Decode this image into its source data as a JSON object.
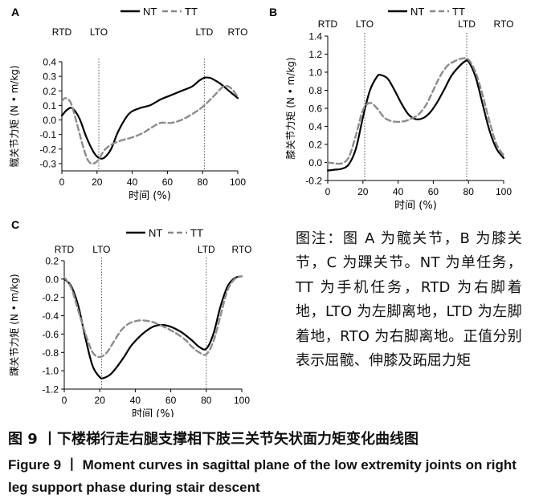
{
  "note": "图注：图 A 为髋关节，B 为膝关节，C 为踝关节。NT 为单任务，TT 为手机任务，RTD 为右脚着地，LTO 为左脚离地，LTD 为左脚着地，RTO 为右脚离地。正值分别表示屈髋、伸膝及跖屈力矩",
  "caption_cn": "图 9 丨下楼梯行走右腿支撑相下肢三关节矢状面力矩变化曲线图",
  "caption_en_label": "Figure 9",
  "caption_en_sep": "丨",
  "caption_en_text": "Moment curves in sagittal plane of the low extremity joints on right leg support phase during stair descent",
  "chart_data": [
    {
      "panel": "A",
      "type": "line",
      "xlabel": "时间 (%)",
      "ylabel": "髋关节力矩 (N • m/kg)",
      "xlim": [
        0,
        100
      ],
      "ylim": [
        -0.35,
        0.4
      ],
      "xticks": [
        "0",
        "20",
        "40",
        "60",
        "80",
        "100"
      ],
      "yticks": [
        "0.4",
        "0.3",
        "0.2",
        "0.1",
        "0.0",
        "-0.1",
        "-0.2",
        "-0.3"
      ],
      "events": [
        {
          "label": "RTD",
          "x": 0,
          "line": false
        },
        {
          "label": "LTO",
          "x": 21,
          "line": true
        },
        {
          "label": "LTD",
          "x": 81,
          "line": true
        },
        {
          "label": "RTO",
          "x": 100,
          "line": false
        }
      ],
      "series": [
        {
          "name": "NT",
          "style": "solid",
          "x": [
            0,
            3,
            6,
            10,
            14,
            18,
            21,
            24,
            28,
            32,
            38,
            44,
            50,
            56,
            62,
            68,
            74,
            78,
            81,
            84,
            86,
            90,
            95,
            100
          ],
          "y": [
            0.03,
            0.07,
            0.08,
            0.01,
            -0.12,
            -0.22,
            -0.26,
            -0.26,
            -0.2,
            -0.08,
            0.04,
            0.08,
            0.1,
            0.14,
            0.17,
            0.2,
            0.23,
            0.27,
            0.29,
            0.29,
            0.28,
            0.25,
            0.2,
            0.15
          ]
        },
        {
          "name": "TT",
          "style": "dashed",
          "x": [
            0,
            2,
            5,
            8,
            12,
            15,
            18,
            21,
            24,
            28,
            34,
            40,
            46,
            50,
            56,
            62,
            68,
            74,
            80,
            86,
            92,
            96,
            100
          ],
          "y": [
            0.13,
            0.15,
            0.12,
            0.0,
            -0.18,
            -0.28,
            -0.3,
            -0.27,
            -0.21,
            -0.17,
            -0.14,
            -0.12,
            -0.09,
            -0.06,
            -0.02,
            -0.02,
            0.0,
            0.04,
            0.09,
            0.16,
            0.23,
            0.22,
            0.16
          ]
        }
      ]
    },
    {
      "panel": "B",
      "type": "line",
      "xlabel": "时间 (%)",
      "ylabel": "膝关节力矩 (N • m/kg)",
      "xlim": [
        0,
        100
      ],
      "ylim": [
        -0.2,
        1.4
      ],
      "xticks": [
        "0",
        "20",
        "40",
        "60",
        "80",
        "100"
      ],
      "yticks": [
        "1.4",
        "1.2",
        "1.0",
        "0.8",
        "0.6",
        "0.4",
        "0.2",
        "0.0",
        "-0.2"
      ],
      "events": [
        {
          "label": "RTD",
          "x": 0,
          "line": false
        },
        {
          "label": "LTO",
          "x": 21,
          "line": true
        },
        {
          "label": "LTD",
          "x": 79,
          "line": true
        },
        {
          "label": "RTO",
          "x": 100,
          "line": false
        }
      ],
      "series": [
        {
          "name": "NT",
          "style": "solid",
          "x": [
            0,
            4,
            8,
            12,
            16,
            20,
            24,
            28,
            30,
            34,
            38,
            42,
            46,
            50,
            54,
            58,
            62,
            66,
            70,
            74,
            78,
            80,
            84,
            88,
            92,
            96,
            100
          ],
          "y": [
            -0.09,
            -0.08,
            -0.07,
            -0.02,
            0.15,
            0.5,
            0.8,
            0.95,
            0.97,
            0.93,
            0.8,
            0.65,
            0.53,
            0.48,
            0.49,
            0.55,
            0.66,
            0.8,
            0.95,
            1.05,
            1.12,
            1.12,
            0.95,
            0.65,
            0.35,
            0.15,
            0.05
          ]
        },
        {
          "name": "TT",
          "style": "dashed",
          "x": [
            0,
            4,
            8,
            12,
            16,
            20,
            24,
            28,
            32,
            36,
            40,
            44,
            48,
            52,
            56,
            60,
            64,
            68,
            72,
            76,
            80,
            84,
            88,
            92,
            96,
            100
          ],
          "y": [
            0.0,
            -0.01,
            -0.01,
            0.06,
            0.3,
            0.58,
            0.66,
            0.6,
            0.5,
            0.46,
            0.45,
            0.46,
            0.49,
            0.54,
            0.64,
            0.8,
            0.96,
            1.07,
            1.12,
            1.15,
            1.14,
            1.0,
            0.75,
            0.45,
            0.2,
            0.08
          ]
        }
      ]
    },
    {
      "panel": "C",
      "type": "line",
      "xlabel": "时间 (%)",
      "ylabel": "踝关节力矩 (N • m/kg)",
      "xlim": [
        0,
        100
      ],
      "ylim": [
        -1.2,
        0.2
      ],
      "xticks": [
        "0",
        "20",
        "40",
        "60",
        "80",
        "100"
      ],
      "yticks": [
        "0.2",
        "0.0",
        "-0.2",
        "-0.4",
        "-0.6",
        "-0.8",
        "-1.0",
        "-1.2"
      ],
      "events": [
        {
          "label": "RTD",
          "x": 0,
          "line": false
        },
        {
          "label": "LTO",
          "x": 21,
          "line": true
        },
        {
          "label": "LTD",
          "x": 80,
          "line": true
        },
        {
          "label": "RTO",
          "x": 100,
          "line": false
        }
      ],
      "series": [
        {
          "name": "NT",
          "style": "solid",
          "x": [
            0,
            4,
            8,
            12,
            16,
            20,
            22,
            26,
            30,
            34,
            38,
            44,
            50,
            55,
            60,
            66,
            72,
            76,
            80,
            84,
            88,
            92,
            96,
            100
          ],
          "y": [
            0.0,
            -0.08,
            -0.3,
            -0.65,
            -0.95,
            -1.07,
            -1.08,
            -1.04,
            -0.95,
            -0.84,
            -0.72,
            -0.6,
            -0.52,
            -0.5,
            -0.52,
            -0.58,
            -0.67,
            -0.74,
            -0.76,
            -0.6,
            -0.3,
            -0.08,
            0.01,
            0.03
          ]
        },
        {
          "name": "TT",
          "style": "dashed",
          "x": [
            0,
            4,
            8,
            12,
            16,
            20,
            24,
            28,
            32,
            36,
            40,
            44,
            50,
            56,
            62,
            68,
            72,
            76,
            80,
            84,
            88,
            92,
            96,
            100
          ],
          "y": [
            0.02,
            -0.1,
            -0.35,
            -0.6,
            -0.8,
            -0.85,
            -0.8,
            -0.68,
            -0.56,
            -0.49,
            -0.46,
            -0.45,
            -0.47,
            -0.52,
            -0.58,
            -0.66,
            -0.74,
            -0.8,
            -0.82,
            -0.68,
            -0.4,
            -0.12,
            0.0,
            0.03
          ]
        }
      ]
    }
  ]
}
